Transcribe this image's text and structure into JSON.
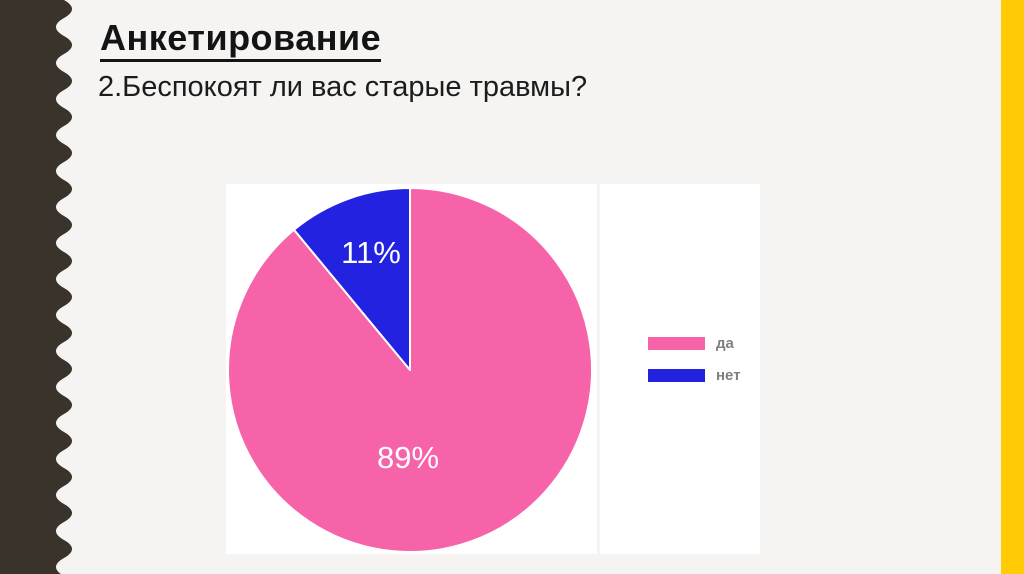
{
  "slide": {
    "title": "Анкетирование",
    "question": "2.Беспокоят ли вас старые травмы?"
  },
  "chart_data": {
    "type": "pie",
    "categories": [
      "да",
      "нет"
    ],
    "values": [
      89,
      11
    ],
    "data_labels": [
      "89%",
      "11%"
    ],
    "colors": [
      "#f763a8",
      "#2222e0"
    ],
    "title": "",
    "legend_position": "right",
    "start_angle_deg": 0,
    "direction": "clockwise",
    "slice_border_color": "#ffffff"
  },
  "legend": {
    "items": [
      {
        "label": "да",
        "color": "#f763a8"
      },
      {
        "label": "нет",
        "color": "#2222e0"
      }
    ]
  },
  "theme": {
    "background": "#f5f4f2",
    "sidebar_color": "#3a332b",
    "accent_stripe_color": "#ffcb05",
    "panel_color": "#ffffff",
    "legend_text_color": "#7f7f7f",
    "pie_label_color": "#ffffff",
    "title_color": "#141414"
  }
}
